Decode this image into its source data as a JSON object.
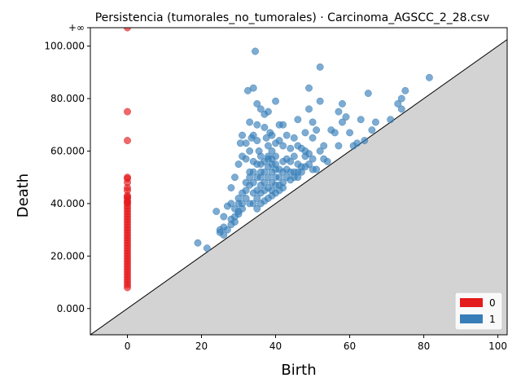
{
  "chart_data": {
    "type": "scatter",
    "title": "Persistencia (tumorales_no_tumorales) · Carcinoma_AGSCC_2_28.csv",
    "xlabel": "Birth",
    "ylabel": "Death",
    "xlim": [
      -10,
      102.5
    ],
    "ylim": [
      -10,
      107
    ],
    "x_ticks": [
      0,
      20,
      40,
      60,
      80,
      100
    ],
    "y_ticks": [
      0,
      20,
      40,
      60,
      80,
      100
    ],
    "y_tick_labels": [
      "0.000",
      "20.000",
      "40.000",
      "60.000",
      "80.000",
      "100.000"
    ],
    "infinity_label": "+∞",
    "infinity_value": 107,
    "diagonal": true,
    "legend_position": "bottom-right",
    "colors": {
      "dim0": "#e41a1c",
      "dim1": "#377eb8",
      "shade": "#d3d3d3",
      "inf_line": "#666666"
    },
    "series": [
      {
        "name": "0",
        "points": [
          [
            0,
            107
          ],
          [
            0,
            75
          ],
          [
            0,
            64
          ],
          [
            0,
            50
          ],
          [
            0,
            49.5
          ],
          [
            0,
            48
          ],
          [
            0,
            46
          ],
          [
            0,
            45
          ],
          [
            0,
            43
          ],
          [
            0,
            42.5
          ],
          [
            0,
            42
          ],
          [
            0,
            41
          ],
          [
            0,
            40.5
          ],
          [
            0,
            40
          ],
          [
            0,
            39
          ],
          [
            0,
            38
          ],
          [
            0,
            37
          ],
          [
            0,
            36
          ],
          [
            0,
            35
          ],
          [
            0,
            34
          ],
          [
            0,
            33
          ],
          [
            0,
            32
          ],
          [
            0,
            31
          ],
          [
            0,
            30
          ],
          [
            0,
            29
          ],
          [
            0,
            28
          ],
          [
            0,
            27
          ],
          [
            0,
            26
          ],
          [
            0,
            25
          ],
          [
            0,
            24
          ],
          [
            0,
            23
          ],
          [
            0,
            22
          ],
          [
            0,
            21
          ],
          [
            0,
            20
          ],
          [
            0,
            19
          ],
          [
            0,
            18
          ],
          [
            0,
            17
          ],
          [
            0,
            16
          ],
          [
            0,
            15
          ],
          [
            0,
            14
          ],
          [
            0,
            13
          ],
          [
            0,
            12
          ],
          [
            0,
            11
          ],
          [
            0,
            10
          ],
          [
            0,
            9
          ],
          [
            0,
            8
          ]
        ]
      },
      {
        "name": "1",
        "points": [
          [
            19,
            25
          ],
          [
            21.5,
            23
          ],
          [
            24,
            37
          ],
          [
            25,
            29
          ],
          [
            25,
            30
          ],
          [
            26,
            31
          ],
          [
            26,
            35
          ],
          [
            27,
            39
          ],
          [
            28,
            40
          ],
          [
            28,
            46
          ],
          [
            29,
            50
          ],
          [
            29,
            33
          ],
          [
            30,
            55
          ],
          [
            30,
            42
          ],
          [
            30,
            36
          ],
          [
            30.5,
            63
          ],
          [
            31,
            66
          ],
          [
            31,
            58
          ],
          [
            32,
            63
          ],
          [
            32,
            57
          ],
          [
            32.5,
            83
          ],
          [
            33,
            71
          ],
          [
            33,
            60
          ],
          [
            33.5,
            65
          ],
          [
            34,
            84
          ],
          [
            34,
            66
          ],
          [
            34.5,
            98
          ],
          [
            35,
            78
          ],
          [
            35,
            70
          ],
          [
            35,
            64
          ],
          [
            35.5,
            60
          ],
          [
            36,
            76
          ],
          [
            36,
            58
          ],
          [
            36,
            55
          ],
          [
            37,
            74
          ],
          [
            37,
            69
          ],
          [
            37.5,
            65
          ],
          [
            38,
            75
          ],
          [
            38,
            62
          ],
          [
            38,
            57
          ],
          [
            38.5,
            67
          ],
          [
            39,
            66
          ],
          [
            39,
            60
          ],
          [
            39,
            55
          ],
          [
            40,
            79
          ],
          [
            40,
            63
          ],
          [
            40,
            58
          ],
          [
            41,
            70
          ],
          [
            41,
            64
          ],
          [
            41,
            53
          ],
          [
            42,
            70
          ],
          [
            42,
            62
          ],
          [
            42,
            56
          ],
          [
            43,
            66
          ],
          [
            43,
            57
          ],
          [
            44,
            61
          ],
          [
            44,
            56
          ],
          [
            45,
            65
          ],
          [
            45,
            58
          ],
          [
            45,
            52
          ],
          [
            46,
            72
          ],
          [
            46,
            62
          ],
          [
            46,
            55
          ],
          [
            47,
            61
          ],
          [
            47,
            54
          ],
          [
            48,
            67
          ],
          [
            48,
            60
          ],
          [
            48,
            58
          ],
          [
            49,
            84
          ],
          [
            49,
            76
          ],
          [
            49,
            59
          ],
          [
            50,
            71
          ],
          [
            50,
            65
          ],
          [
            50,
            57
          ],
          [
            51,
            68
          ],
          [
            51,
            53
          ],
          [
            52,
            92
          ],
          [
            52,
            79
          ],
          [
            52,
            60
          ],
          [
            53,
            62
          ],
          [
            53,
            57
          ],
          [
            54,
            56
          ],
          [
            55,
            68
          ],
          [
            56,
            67
          ],
          [
            57,
            75
          ],
          [
            57,
            62
          ],
          [
            58,
            78
          ],
          [
            58,
            71
          ],
          [
            59,
            73
          ],
          [
            60,
            67
          ],
          [
            61,
            62
          ],
          [
            62,
            63
          ],
          [
            63,
            72
          ],
          [
            64,
            64
          ],
          [
            65,
            82
          ],
          [
            66,
            68
          ],
          [
            67,
            71
          ],
          [
            71,
            72
          ],
          [
            73,
            78
          ],
          [
            74,
            76
          ],
          [
            74,
            80
          ],
          [
            75,
            83
          ],
          [
            81.5,
            88
          ],
          [
            28,
            32
          ],
          [
            29,
            35
          ],
          [
            30,
            37
          ],
          [
            31,
            38
          ],
          [
            31,
            40
          ],
          [
            32,
            42
          ],
          [
            32,
            45
          ],
          [
            33,
            47
          ],
          [
            33,
            50
          ],
          [
            34,
            52
          ],
          [
            34,
            48
          ],
          [
            35,
            55
          ],
          [
            35,
            45
          ],
          [
            35,
            42
          ],
          [
            36,
            50
          ],
          [
            36,
            47
          ],
          [
            36,
            44
          ],
          [
            37,
            52
          ],
          [
            37,
            48
          ],
          [
            37,
            45
          ],
          [
            38,
            54
          ],
          [
            38,
            50
          ],
          [
            38,
            46
          ],
          [
            39,
            52
          ],
          [
            39,
            48
          ],
          [
            39,
            45
          ],
          [
            40,
            55
          ],
          [
            40,
            50
          ],
          [
            40,
            47
          ],
          [
            41,
            50
          ],
          [
            41,
            47
          ],
          [
            42,
            52
          ],
          [
            42,
            48
          ],
          [
            43,
            53
          ],
          [
            43,
            50
          ],
          [
            44,
            52
          ],
          [
            44,
            49
          ],
          [
            45,
            50
          ],
          [
            46,
            52
          ],
          [
            46,
            50
          ],
          [
            47,
            52
          ],
          [
            48,
            54
          ],
          [
            49,
            55
          ],
          [
            50,
            53
          ],
          [
            30,
            40
          ],
          [
            31,
            44
          ],
          [
            32,
            48
          ],
          [
            33,
            52
          ],
          [
            34,
            56
          ],
          [
            34,
            44
          ],
          [
            35,
            50
          ],
          [
            36,
            52
          ],
          [
            37,
            56
          ],
          [
            38,
            58
          ],
          [
            39,
            57
          ],
          [
            40,
            53
          ],
          [
            26,
            28
          ],
          [
            27,
            30
          ],
          [
            28,
            34
          ],
          [
            29,
            38
          ],
          [
            33,
            40
          ],
          [
            34,
            40
          ],
          [
            35,
            38
          ],
          [
            36,
            40
          ],
          [
            37,
            41
          ],
          [
            38,
            42
          ],
          [
            39,
            43
          ],
          [
            40,
            44
          ],
          [
            41,
            45
          ],
          [
            42,
            46
          ]
        ]
      }
    ]
  }
}
